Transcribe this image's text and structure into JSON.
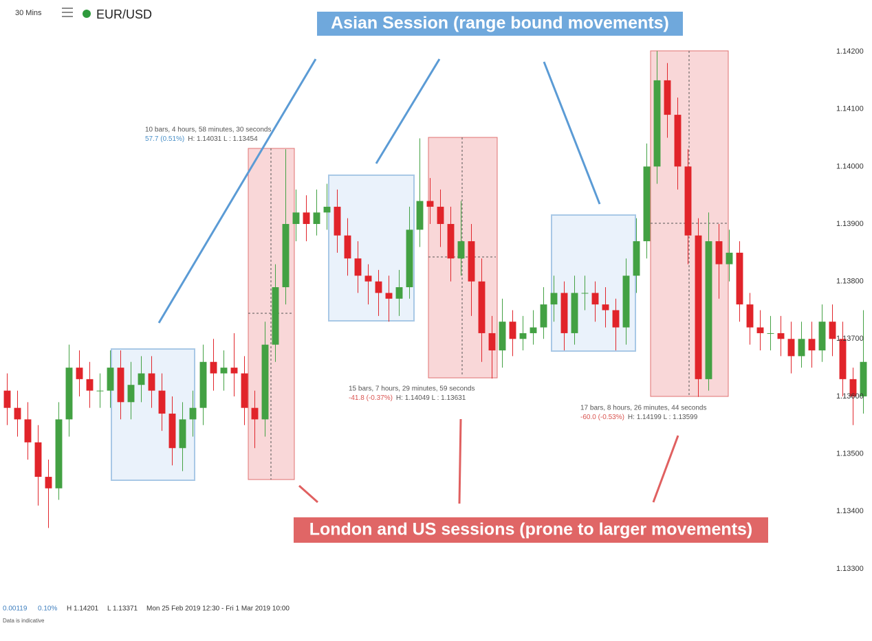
{
  "chart_data": {
    "type": "candlestick",
    "header": {
      "interval": "30 Mins",
      "symbol": "EUR/USD"
    },
    "callouts": {
      "asian": "Asian Session (range bound movements)",
      "london_us": "London and US sessions (prone to larger movements)"
    },
    "measurements": [
      {
        "range": "10 bars, 4 hours, 58 minutes, 30 seconds",
        "change": "57.7 (0.51%)",
        "hl": "H: 1.14031 L : 1.13454"
      },
      {
        "range": "15 bars, 7 hours, 29 minutes, 59 seconds",
        "change": "-41.8 (-0.37%)",
        "hl": "H: 1.14049 L : 1.13631"
      },
      {
        "range": "17 bars, 8 hours, 26 minutes, 44 seconds",
        "change": "-60.0 (-0.53%)",
        "hl": "H: 1.14199 L : 1.13599"
      }
    ],
    "footer": {
      "change": "0.00119",
      "change_pct": "0.10%",
      "high": "H 1.14201",
      "low": "L 1.13371",
      "period": "Mon 25 Feb 2019 12:30 - Fri 1 Mar 2019 10:00",
      "note": "Data is indicative"
    },
    "up_color": "#43a143",
    "down_color": "#e1242a",
    "ylim": [
      1.13264,
      1.14224
    ],
    "yticks": [
      {
        "value": 1.142,
        "label": "1.14200"
      },
      {
        "value": 1.141,
        "label": "1.14100"
      },
      {
        "value": 1.14,
        "label": "1.14000"
      },
      {
        "value": 1.139,
        "label": "1.13900"
      },
      {
        "value": 1.138,
        "label": "1.13800"
      },
      {
        "value": 1.137,
        "label": "1.13700"
      },
      {
        "value": 1.136,
        "label": "1.13600"
      },
      {
        "value": 1.135,
        "label": "1.13500"
      },
      {
        "value": 1.134,
        "label": "1.13400"
      },
      {
        "value": 1.133,
        "label": "1.13300"
      }
    ],
    "open": [
      1.1361,
      1.1358,
      1.1356,
      1.1352,
      1.1346,
      1.1344,
      1.1356,
      1.1365,
      1.1363,
      1.1361,
      1.1361,
      1.1365,
      1.1359,
      1.1362,
      1.1364,
      1.1361,
      1.1357,
      1.1351,
      1.1356,
      1.1358,
      1.1366,
      1.1364,
      1.1365,
      1.1364,
      1.1358,
      1.1356,
      1.1369,
      1.1379,
      1.139,
      1.1392,
      1.139,
      1.1392,
      1.1393,
      1.1388,
      1.1384,
      1.1381,
      1.138,
      1.1378,
      1.1377,
      1.1379,
      1.1389,
      1.1394,
      1.1393,
      1.139,
      1.1384,
      1.1387,
      1.138,
      1.1371,
      1.1368,
      1.1373,
      1.137,
      1.1371,
      1.1372,
      1.1376,
      1.1378,
      1.1371,
      1.1378,
      1.1378,
      1.1376,
      1.1375,
      1.1372,
      1.1381,
      1.1387,
      1.14,
      1.1415,
      1.1409,
      1.14,
      1.1388,
      1.1363,
      1.1387,
      1.1383,
      1.1385,
      1.1376,
      1.1372,
      1.1371,
      1.1371,
      1.137,
      1.1367,
      1.137,
      1.1368,
      1.1373,
      1.137,
      1.1363,
      1.136
    ],
    "high": [
      1.1364,
      1.1361,
      1.1359,
      1.1355,
      1.1349,
      1.1359,
      1.1369,
      1.1368,
      1.1366,
      1.1364,
      1.1368,
      1.1368,
      1.1366,
      1.1367,
      1.1367,
      1.1364,
      1.136,
      1.1359,
      1.1361,
      1.1369,
      1.137,
      1.1368,
      1.1371,
      1.1367,
      1.1361,
      1.1373,
      1.1383,
      1.1403,
      1.1396,
      1.1395,
      1.1396,
      1.1397,
      1.1396,
      1.1391,
      1.1387,
      1.1383,
      1.1382,
      1.1381,
      1.1382,
      1.1393,
      1.14049,
      1.1398,
      1.1396,
      1.1393,
      1.1394,
      1.139,
      1.1384,
      1.1374,
      1.1377,
      1.1375,
      1.1374,
      1.1375,
      1.1379,
      1.1381,
      1.138,
      1.1381,
      1.1381,
      1.138,
      1.1379,
      1.1377,
      1.1384,
      1.1391,
      1.1404,
      1.14201,
      1.1418,
      1.1412,
      1.1403,
      1.1391,
      1.1392,
      1.139,
      1.1389,
      1.1387,
      1.1378,
      1.1375,
      1.1374,
      1.1374,
      1.1373,
      1.1373,
      1.1373,
      1.1376,
      1.1376,
      1.1373,
      1.1365,
      1.1375
    ],
    "low": [
      1.1355,
      1.1353,
      1.1349,
      1.1341,
      1.13371,
      1.1342,
      1.1353,
      1.136,
      1.1358,
      1.1358,
      1.1358,
      1.1356,
      1.1356,
      1.1359,
      1.1358,
      1.1354,
      1.1348,
      1.1347,
      1.1353,
      1.1355,
      1.1361,
      1.1361,
      1.136,
      1.1355,
      1.1351,
      1.1353,
      1.1366,
      1.1376,
      1.1387,
      1.1387,
      1.1388,
      1.1389,
      1.1385,
      1.1381,
      1.1378,
      1.1376,
      1.1374,
      1.1373,
      1.1374,
      1.1377,
      1.1386,
      1.139,
      1.1386,
      1.138,
      1.1381,
      1.1374,
      1.1366,
      1.13631,
      1.1365,
      1.1367,
      1.1368,
      1.1369,
      1.137,
      1.1373,
      1.1368,
      1.1369,
      1.1375,
      1.1373,
      1.1372,
      1.1368,
      1.1369,
      1.1378,
      1.1384,
      1.1397,
      1.1405,
      1.1396,
      1.1383,
      1.13599,
      1.1361,
      1.1377,
      1.138,
      1.1373,
      1.1369,
      1.1368,
      1.1368,
      1.1367,
      1.1364,
      1.1365,
      1.1365,
      1.1366,
      1.1367,
      1.136,
      1.1355,
      1.1357
    ],
    "close": [
      1.1358,
      1.1356,
      1.1352,
      1.1346,
      1.1344,
      1.1356,
      1.1365,
      1.1363,
      1.1361,
      1.1361,
      1.1365,
      1.1359,
      1.1362,
      1.1364,
      1.1361,
      1.1357,
      1.1351,
      1.1356,
      1.1358,
      1.1366,
      1.1364,
      1.1365,
      1.1364,
      1.1358,
      1.1356,
      1.1369,
      1.1379,
      1.139,
      1.1392,
      1.139,
      1.1392,
      1.1393,
      1.1388,
      1.1384,
      1.1381,
      1.138,
      1.1378,
      1.1377,
      1.1379,
      1.1389,
      1.1394,
      1.1393,
      1.139,
      1.1384,
      1.1387,
      1.138,
      1.1371,
      1.1368,
      1.1373,
      1.137,
      1.1371,
      1.1372,
      1.1376,
      1.1378,
      1.1371,
      1.1378,
      1.1378,
      1.1376,
      1.1375,
      1.1372,
      1.1381,
      1.1387,
      1.14,
      1.1415,
      1.1409,
      1.14,
      1.1388,
      1.1363,
      1.1387,
      1.1383,
      1.1385,
      1.1376,
      1.1372,
      1.1371,
      1.1371,
      1.137,
      1.1367,
      1.137,
      1.1368,
      1.1373,
      1.137,
      1.1363,
      1.136,
      1.1366
    ]
  }
}
